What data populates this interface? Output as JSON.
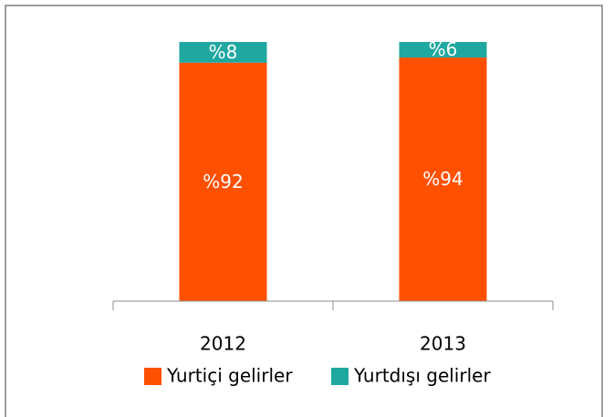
{
  "chart_data": {
    "type": "stacked_bar",
    "categories": [
      "2012",
      "2013"
    ],
    "series": [
      {
        "name": "Yurtiçi gelirler",
        "color": "#ff5000",
        "values": [
          92,
          94
        ],
        "value_labels": [
          "%92",
          "%94"
        ]
      },
      {
        "name": "Yurtdışı gelirler",
        "color": "#1fa8a0",
        "values": [
          8,
          6
        ],
        "value_labels": [
          "%8",
          "%6"
        ]
      }
    ]
  }
}
